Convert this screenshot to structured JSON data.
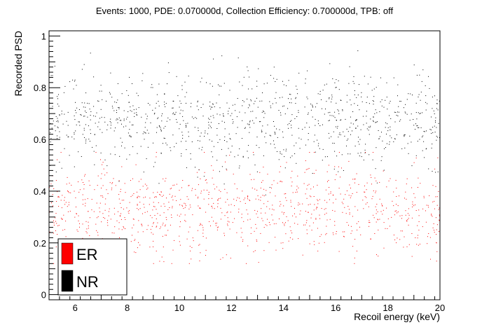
{
  "chart_data": {
    "type": "scatter",
    "title": "Events: 1000, PDE: 0.070000d, Collection Efficiency: 0.700000d, TPB: off",
    "xlabel": "Recoil energy (keV)",
    "ylabel": "Recorded PSD",
    "xlim": [
      5,
      20
    ],
    "ylim": [
      -0.02,
      1.02
    ],
    "x_ticks": [
      6,
      8,
      10,
      12,
      14,
      16,
      18,
      20
    ],
    "x_tick_labels": [
      "6",
      "8",
      "10",
      "12",
      "14",
      "16",
      "18",
      "20"
    ],
    "y_ticks": [
      0,
      0.2,
      0.4,
      0.6,
      0.8,
      1
    ],
    "y_tick_labels": [
      "0",
      "0.2",
      "0.4",
      "0.6",
      "0.8",
      "1"
    ],
    "grid": false,
    "legend_position": "bottom-left",
    "series": [
      {
        "name": "ER",
        "color": "#ff0000",
        "count": 1000,
        "distribution": {
          "x_range": [
            5,
            20
          ],
          "y_center": 0.33,
          "y_spread": 0.09,
          "y_min": 0.12,
          "y_max": 0.55
        }
      },
      {
        "name": "NR",
        "color": "#000000",
        "count": 1000,
        "distribution": {
          "x_range": [
            5,
            20
          ],
          "y_center": 0.68,
          "y_spread": 0.09,
          "y_min": 0.0,
          "y_max": 1.0
        }
      }
    ]
  }
}
